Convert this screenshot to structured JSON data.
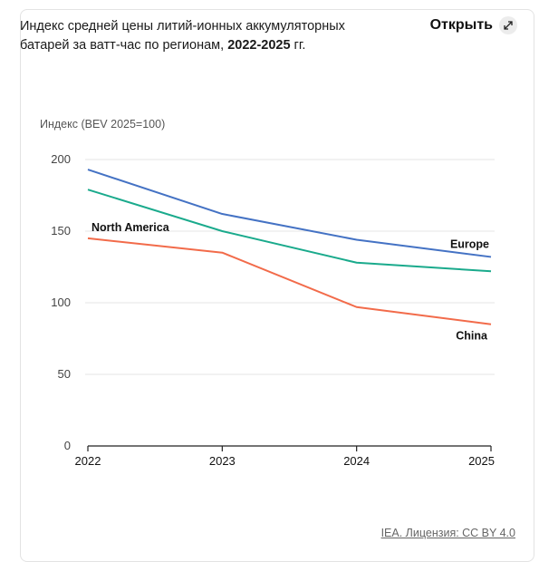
{
  "card": {
    "title_part1": "Индекс средней цены литий-ионных аккумуляторных батарей за ватт-час по регионам, ",
    "title_bold": "2022-2025",
    "title_part2": " гг.",
    "open_label": "Открыть",
    "open_icon": "expand-icon",
    "source_label": "IEA. Лицензия: CC BY 4.0"
  },
  "chart_data": {
    "type": "line",
    "ylabel": "Индекс (BEV 2025=100)",
    "xlabel": "",
    "x": [
      "2022",
      "2023",
      "2024",
      "2025"
    ],
    "ylim": [
      0,
      200
    ],
    "yticks": [
      "0",
      "50",
      "100",
      "150",
      "200"
    ],
    "grid": true,
    "series": [
      {
        "name": "Europe",
        "color": "#4472c4",
        "values": [
          193,
          162,
          144,
          132
        ]
      },
      {
        "name": "",
        "color": "#1aaa8c",
        "values": [
          179,
          150,
          128,
          122
        ]
      },
      {
        "name": "China",
        "color": "#f26b4a",
        "values": [
          145,
          135,
          97,
          85
        ]
      }
    ],
    "annotations": [
      {
        "text": "North America",
        "color": "#111111"
      }
    ]
  }
}
